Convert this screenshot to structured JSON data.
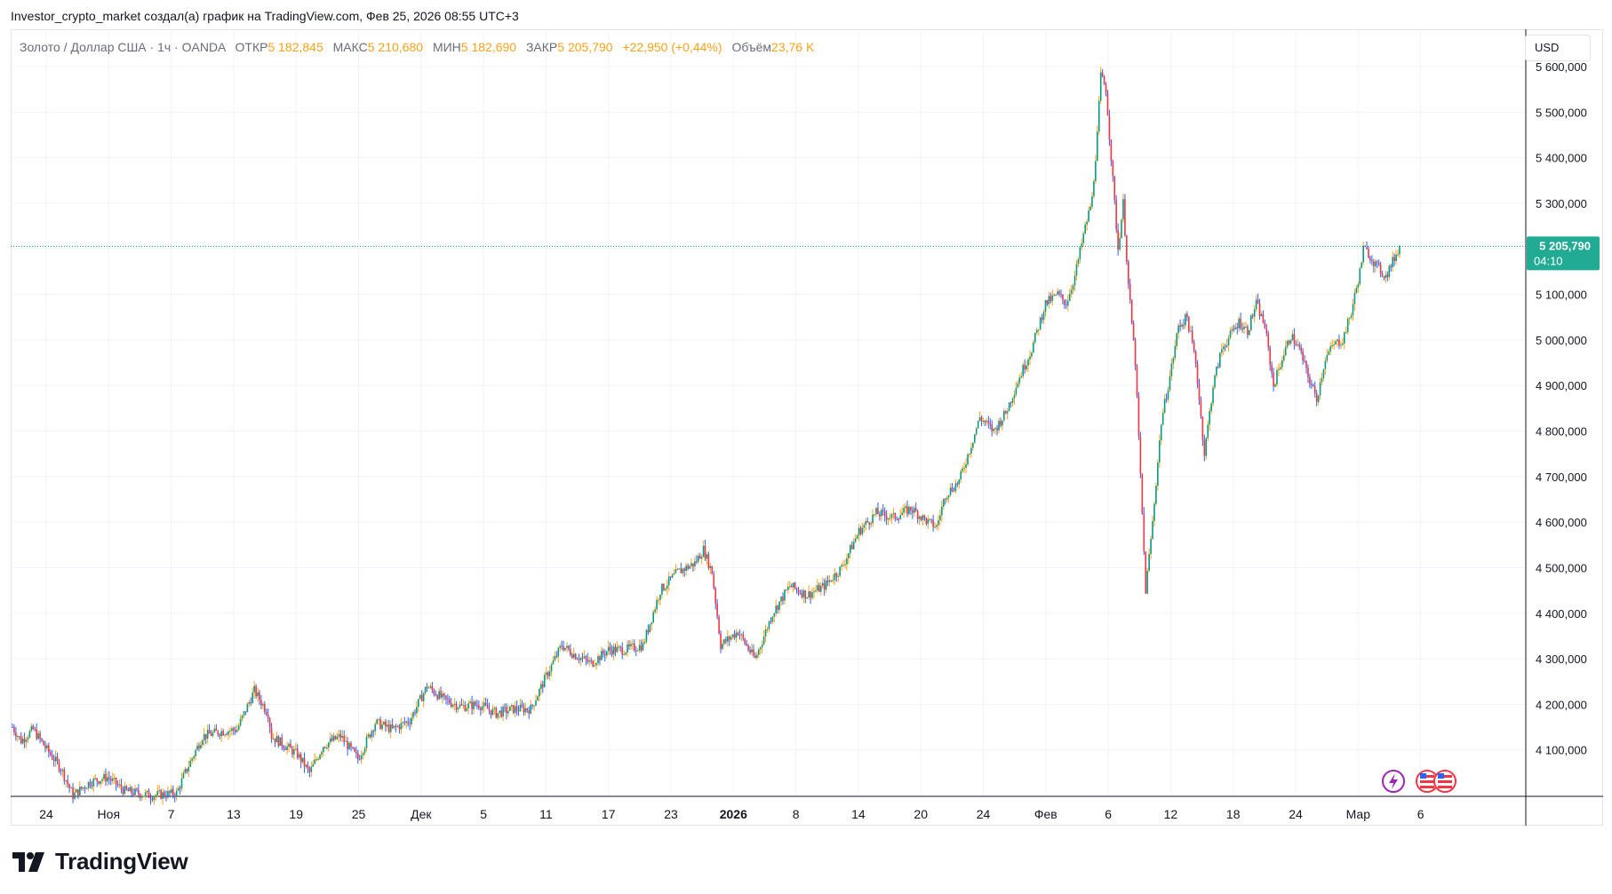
{
  "header": {
    "attribution": "Investor_crypto_market создал(а) график на TradingView.com, Фев 25, 2026 08:55 UTC+3"
  },
  "legend": {
    "symbol": "Золото / Доллар США · 1ч · OANDA",
    "open_label": "ОТКР",
    "open": "5 182,845",
    "high_label": "МАКС",
    "high": "5 210,680",
    "low_label": "МИН",
    "low": "5 182,690",
    "close_label": "ЗАКР",
    "close": "5 205,790",
    "change": "+22,950 (+0,44%)",
    "volume_label": "Объём",
    "volume": "23,76 K"
  },
  "currency_button": "USD",
  "price_tag": {
    "price": "5 205,790",
    "countdown": "04:10"
  },
  "brand": {
    "name": "TradingView"
  },
  "colors": {
    "up": "#089981",
    "down": "#f23645",
    "wick_up": "#f7a21b",
    "wick_down": "#2962ff",
    "tag": "#22ab94"
  },
  "chart_data": {
    "type": "line",
    "title": "Золото / Доллар США · 1ч · OANDA",
    "ylim": [
      4000,
      5680
    ],
    "y_ticks": [
      "5 600,000",
      "5 500,000",
      "5 400,000",
      "5 300,000",
      "5 200,000",
      "5 100,000",
      "5 000,000",
      "4 900,000",
      "4 800,000",
      "4 700,000",
      "4 600,000",
      "4 500,000",
      "4 400,000",
      "4 300,000",
      "4 200,000",
      "4 100,000"
    ],
    "x_ticks": [
      "24",
      "Ноя",
      "7",
      "13",
      "19",
      "25",
      "Дек",
      "5",
      "11",
      "17",
      "23",
      "2026",
      "8",
      "14",
      "20",
      "24",
      "Фев",
      "6",
      "12",
      "18",
      "24",
      "Мар",
      "6"
    ],
    "current_price": 5205.79,
    "series": [
      {
        "values": [
          [
            0,
            4150
          ],
          [
            5,
            4120
          ],
          [
            12,
            4145
          ],
          [
            20,
            4100
          ],
          [
            28,
            4060
          ],
          [
            35,
            4000
          ],
          [
            45,
            4030
          ],
          [
            55,
            4040
          ],
          [
            65,
            4010
          ],
          [
            80,
            4000
          ],
          [
            95,
            4005
          ],
          [
            100,
            4050
          ],
          [
            110,
            4130
          ],
          [
            120,
            4140
          ],
          [
            130,
            4145
          ],
          [
            140,
            4230
          ],
          [
            148,
            4180
          ],
          [
            150,
            4130
          ],
          [
            165,
            4090
          ],
          [
            172,
            4050
          ],
          [
            180,
            4110
          ],
          [
            190,
            4130
          ],
          [
            200,
            4080
          ],
          [
            210,
            4160
          ],
          [
            220,
            4145
          ],
          [
            230,
            4165
          ],
          [
            240,
            4240
          ],
          [
            250,
            4210
          ],
          [
            260,
            4195
          ],
          [
            270,
            4200
          ],
          [
            280,
            4180
          ],
          [
            290,
            4190
          ],
          [
            300,
            4190
          ],
          [
            310,
            4270
          ],
          [
            318,
            4330
          ],
          [
            325,
            4310
          ],
          [
            335,
            4290
          ],
          [
            345,
            4320
          ],
          [
            355,
            4320
          ],
          [
            365,
            4330
          ],
          [
            375,
            4450
          ],
          [
            385,
            4490
          ],
          [
            395,
            4510
          ],
          [
            400,
            4540
          ],
          [
            405,
            4490
          ],
          [
            410,
            4330
          ],
          [
            420,
            4360
          ],
          [
            428,
            4310
          ],
          [
            430,
            4300
          ],
          [
            440,
            4400
          ],
          [
            450,
            4460
          ],
          [
            460,
            4440
          ],
          [
            470,
            4460
          ],
          [
            480,
            4500
          ],
          [
            490,
            4580
          ],
          [
            500,
            4620
          ],
          [
            510,
            4610
          ],
          [
            520,
            4630
          ],
          [
            530,
            4600
          ],
          [
            535,
            4590
          ],
          [
            540,
            4660
          ],
          [
            548,
            4690
          ],
          [
            555,
            4770
          ],
          [
            560,
            4830
          ],
          [
            568,
            4800
          ],
          [
            575,
            4840
          ],
          [
            582,
            4910
          ],
          [
            590,
            4980
          ],
          [
            598,
            5080
          ],
          [
            605,
            5100
          ],
          [
            610,
            5080
          ],
          [
            615,
            5140
          ],
          [
            620,
            5230
          ],
          [
            625,
            5310
          ],
          [
            628,
            5450
          ],
          [
            630,
            5580
          ],
          [
            633,
            5550
          ],
          [
            636,
            5400
          ],
          [
            640,
            5200
          ],
          [
            643,
            5300
          ],
          [
            646,
            5120
          ],
          [
            650,
            4950
          ],
          [
            653,
            4700
          ],
          [
            656,
            4450
          ],
          [
            660,
            4600
          ],
          [
            665,
            4820
          ],
          [
            670,
            4920
          ],
          [
            675,
            5030
          ],
          [
            680,
            5050
          ],
          [
            685,
            4950
          ],
          [
            690,
            4750
          ],
          [
            695,
            4900
          ],
          [
            700,
            4980
          ],
          [
            705,
            5010
          ],
          [
            710,
            5040
          ],
          [
            715,
            5020
          ],
          [
            720,
            5080
          ],
          [
            725,
            5030
          ],
          [
            730,
            4900
          ],
          [
            735,
            4960
          ],
          [
            740,
            5010
          ],
          [
            745,
            4980
          ],
          [
            750,
            4920
          ],
          [
            755,
            4870
          ],
          [
            760,
            4960
          ],
          [
            765,
            4990
          ],
          [
            770,
            5000
          ],
          [
            775,
            5060
          ],
          [
            780,
            5150
          ],
          [
            782,
            5200
          ],
          [
            785,
            5190
          ],
          [
            790,
            5160
          ],
          [
            795,
            5140
          ],
          [
            800,
            5180
          ],
          [
            803,
            5205.79
          ]
        ]
      }
    ]
  }
}
